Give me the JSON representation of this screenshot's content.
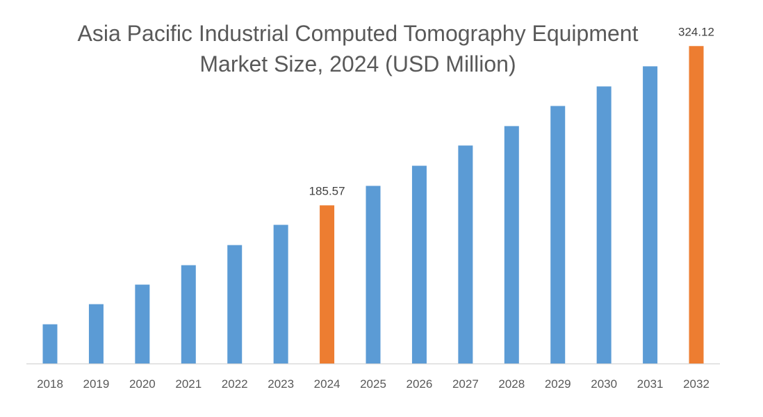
{
  "chart_data": {
    "type": "bar",
    "title": "Asia Pacific Industrial Computed Tomography Equipment Market Size, 2024 (USD Million)",
    "xlabel": "",
    "ylabel": "",
    "categories": [
      "2018",
      "2019",
      "2020",
      "2021",
      "2022",
      "2023",
      "2024",
      "2025",
      "2026",
      "2027",
      "2028",
      "2029",
      "2030",
      "2031",
      "2032"
    ],
    "values": [
      82.1,
      99.6,
      116.6,
      133.5,
      151.0,
      168.6,
      185.57,
      202.5,
      220.0,
      237.6,
      254.5,
      272.0,
      289.0,
      306.5,
      324.12
    ],
    "data_labels": {
      "2024": "185.57",
      "2032": "324.12"
    },
    "highlight": [
      "2024",
      "2032"
    ],
    "ylim": [
      48,
      340
    ],
    "grid": false,
    "legend": "none",
    "colors": {
      "default": "#5B9BD5",
      "highlight": "#ED7D31",
      "axis": "#D9D9D9",
      "text": "#595959"
    }
  }
}
